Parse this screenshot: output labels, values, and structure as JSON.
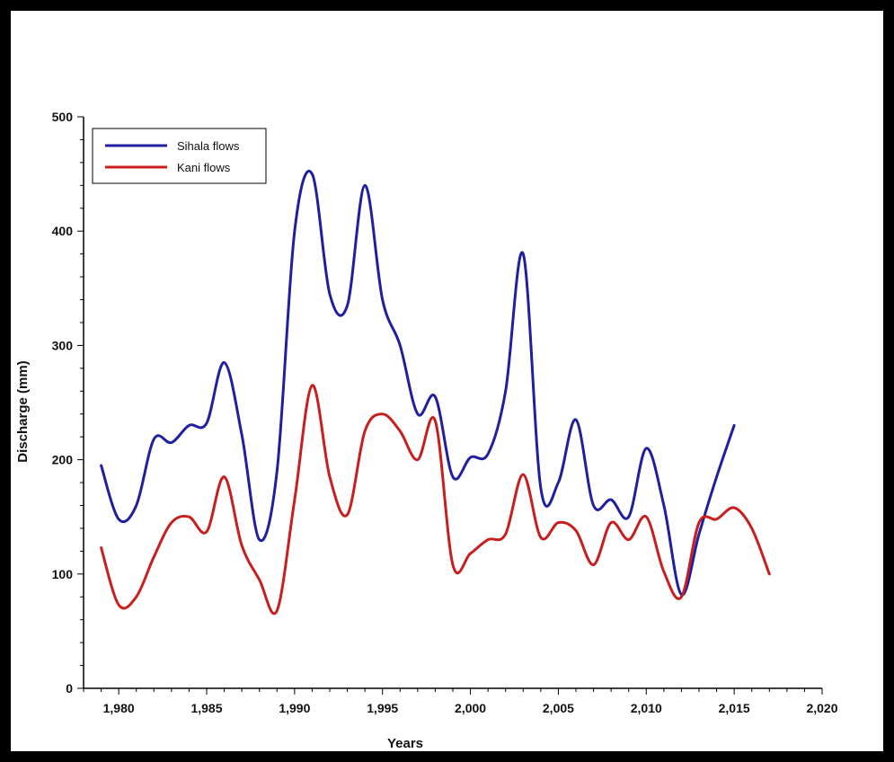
{
  "chart_data": {
    "type": "line",
    "title": "",
    "xlabel": "Years",
    "ylabel": "Discharge (mm)",
    "xlim": [
      1978,
      2020
    ],
    "ylim": [
      0,
      500
    ],
    "x_ticks": [
      1980,
      1985,
      1990,
      1995,
      2000,
      2005,
      2010,
      2015,
      2020
    ],
    "x_tick_labels": [
      "1,980",
      "1,985",
      "1,990",
      "1,995",
      "2,000",
      "2,005",
      "2,010",
      "2,015",
      "2,020"
    ],
    "y_ticks": [
      0,
      100,
      200,
      300,
      400,
      500
    ],
    "y_tick_labels": [
      "0",
      "100",
      "200",
      "300",
      "400",
      "500"
    ],
    "grid": false,
    "legend_position": "top-left",
    "series": [
      {
        "name": "Sihala flows",
        "color": "#1f1fa0",
        "x": [
          1979,
          1980,
          1981,
          1982,
          1983,
          1984,
          1985,
          1986,
          1987,
          1988,
          1989,
          1990,
          1991,
          1992,
          1993,
          1994,
          1995,
          1996,
          1997,
          1998,
          1999,
          2000,
          2001,
          2002,
          2003,
          2004,
          2005,
          2006,
          2007,
          2008,
          2009,
          2010,
          2011,
          2012,
          2013,
          2014,
          2015
        ],
        "y": [
          195,
          148,
          160,
          218,
          215,
          230,
          232,
          285,
          222,
          130,
          190,
          400,
          450,
          345,
          335,
          440,
          340,
          300,
          240,
          255,
          185,
          202,
          205,
          260,
          380,
          175,
          180,
          235,
          160,
          165,
          150,
          210,
          160,
          82,
          135,
          185,
          230
        ]
      },
      {
        "name": "Kani flows",
        "color": "#c81e1e",
        "x": [
          1979,
          1980,
          1981,
          1982,
          1983,
          1984,
          1985,
          1986,
          1987,
          1988,
          1989,
          1990,
          1991,
          1992,
          1993,
          1994,
          1995,
          1996,
          1997,
          1998,
          1999,
          2000,
          2001,
          2002,
          2003,
          2004,
          2005,
          2006,
          2007,
          2008,
          2009,
          2010,
          2011,
          2012,
          2013,
          2014,
          2015,
          2016,
          2017
        ],
        "y": [
          123,
          73,
          80,
          115,
          145,
          150,
          137,
          185,
          125,
          95,
          68,
          165,
          265,
          185,
          152,
          225,
          240,
          225,
          200,
          234,
          108,
          118,
          130,
          135,
          187,
          132,
          145,
          138,
          108,
          145,
          130,
          150,
          102,
          80,
          145,
          148,
          158,
          140,
          100
        ]
      }
    ]
  }
}
